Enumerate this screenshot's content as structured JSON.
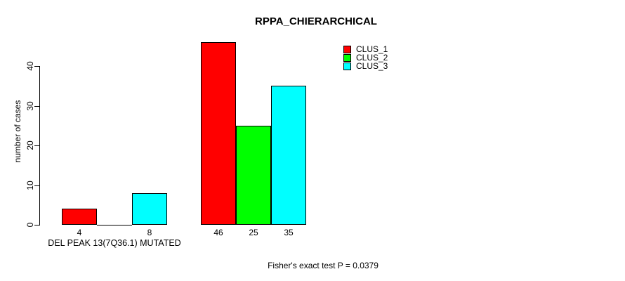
{
  "chart_data": {
    "type": "bar",
    "title": "RPPA_CHIERARCHICAL",
    "ylabel": "number of cases",
    "xlabel": "",
    "group_label": "DEL PEAK 13(7Q36.1) MUTATED",
    "categories": [
      "DEL PEAK 13(7Q36.1) MUTATED",
      ""
    ],
    "series": [
      {
        "name": "CLUS_1",
        "color": "#ff0000",
        "values": [
          4,
          46
        ]
      },
      {
        "name": "CLUS_2",
        "color": "#00ff00",
        "values": [
          0,
          25
        ]
      },
      {
        "name": "CLUS_3",
        "color": "#00ffff",
        "values": [
          8,
          35
        ]
      }
    ],
    "yticks": [
      0,
      10,
      20,
      30,
      40
    ],
    "ylim": [
      0,
      46
    ],
    "bar_value_labels": [
      [
        "4",
        "",
        "8"
      ],
      [
        "46",
        "25",
        "35"
      ]
    ],
    "annotation": "Fisher's exact test P = 0.0379",
    "legend_position": "top-right",
    "grid": false,
    "axis_color": "#000000",
    "bar_border_color": "#000000"
  }
}
